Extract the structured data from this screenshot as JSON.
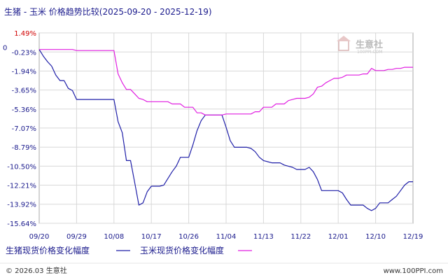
{
  "title": "生猪 - 玉米 价格趋势比较(2025-09-20 - 2025-12-19)",
  "watermark": {
    "brand": "生意社",
    "url": "100PPI.COM"
  },
  "footer": {
    "left": "© 2026.03 生意社",
    "right": "www.100PPI.com"
  },
  "colors": {
    "series_1": "#1f1fa8",
    "series_2": "#e01ee0",
    "axis_text": "#1a1a8c",
    "grid": "#d8d8d8",
    "top_tick": "#d00000"
  },
  "chart_data": {
    "type": "line",
    "title": "生猪 - 玉米 价格趋势比较(2025-09-20 - 2025-12-19)",
    "xlabel": "",
    "ylabel": "",
    "y_unit": "%",
    "ylim": [
      -15.64,
      1.49
    ],
    "y_ticks": [
      "1.49%",
      "-0.23%",
      "-1.94%",
      "-3.65%",
      "-5.36%",
      "-7.07%",
      "-8.79%",
      "-10.50%",
      "-12.21%",
      "-13.92%",
      "-15.64%"
    ],
    "y_tick_values": [
      1.49,
      -0.23,
      -1.94,
      -3.65,
      -5.36,
      -7.07,
      -8.79,
      -10.5,
      -12.21,
      -13.92,
      -15.64
    ],
    "zero_label": "0",
    "x_ticks": [
      "09/20",
      "09/29",
      "10/08",
      "10/17",
      "10/26",
      "11/04",
      "11/13",
      "11/22",
      "12/01",
      "12/10",
      "12/19"
    ],
    "x_range": [
      "09/20",
      "12/19"
    ],
    "grid": true,
    "legend_position": "bottom-left",
    "series": [
      {
        "name": "生猪现货价格变化幅度",
        "color": "#1f1fa8",
        "points": [
          [
            "09/20",
            0.0
          ],
          [
            "09/21",
            -0.6
          ],
          [
            "09/22",
            -1.1
          ],
          [
            "09/23",
            -1.5
          ],
          [
            "09/24",
            -2.3
          ],
          [
            "09/25",
            -2.8
          ],
          [
            "09/26",
            -2.8
          ],
          [
            "09/27",
            -3.5
          ],
          [
            "09/28",
            -3.7
          ],
          [
            "09/29",
            -4.5
          ],
          [
            "09/30",
            -4.5
          ],
          [
            "10/01",
            -4.5
          ],
          [
            "10/02",
            -4.5
          ],
          [
            "10/03",
            -4.5
          ],
          [
            "10/04",
            -4.5
          ],
          [
            "10/05",
            -4.5
          ],
          [
            "10/06",
            -4.5
          ],
          [
            "10/07",
            -4.5
          ],
          [
            "10/08",
            -4.5
          ],
          [
            "10/09",
            -6.5
          ],
          [
            "10/10",
            -7.5
          ],
          [
            "10/11",
            -10.0
          ],
          [
            "10/12",
            -10.0
          ],
          [
            "10/13",
            -12.0
          ],
          [
            "10/14",
            -14.0
          ],
          [
            "10/15",
            -13.8
          ],
          [
            "10/16",
            -12.8
          ],
          [
            "10/17",
            -12.3
          ],
          [
            "10/18",
            -12.3
          ],
          [
            "10/19",
            -12.3
          ],
          [
            "10/20",
            -12.2
          ],
          [
            "10/21",
            -11.6
          ],
          [
            "10/22",
            -11.0
          ],
          [
            "10/23",
            -10.5
          ],
          [
            "10/24",
            -9.7
          ],
          [
            "10/25",
            -9.7
          ],
          [
            "10/26",
            -9.7
          ],
          [
            "10/27",
            -8.6
          ],
          [
            "10/28",
            -7.3
          ],
          [
            "10/29",
            -6.4
          ],
          [
            "10/30",
            -5.9
          ],
          [
            "10/31",
            -5.9
          ],
          [
            "11/01",
            -5.9
          ],
          [
            "11/02",
            -5.9
          ],
          [
            "11/03",
            -5.9
          ],
          [
            "11/04",
            -7.0
          ],
          [
            "11/05",
            -8.2
          ],
          [
            "11/06",
            -8.8
          ],
          [
            "11/07",
            -8.8
          ],
          [
            "11/08",
            -8.8
          ],
          [
            "11/09",
            -8.8
          ],
          [
            "11/10",
            -8.9
          ],
          [
            "11/11",
            -9.2
          ],
          [
            "11/12",
            -9.7
          ],
          [
            "11/13",
            -10.0
          ],
          [
            "11/14",
            -10.1
          ],
          [
            "11/15",
            -10.2
          ],
          [
            "11/16",
            -10.2
          ],
          [
            "11/17",
            -10.2
          ],
          [
            "11/18",
            -10.4
          ],
          [
            "11/19",
            -10.5
          ],
          [
            "11/20",
            -10.6
          ],
          [
            "11/21",
            -10.8
          ],
          [
            "11/22",
            -10.8
          ],
          [
            "11/23",
            -10.8
          ],
          [
            "11/24",
            -10.6
          ],
          [
            "11/25",
            -11.0
          ],
          [
            "11/26",
            -11.7
          ],
          [
            "11/27",
            -12.7
          ],
          [
            "11/28",
            -12.7
          ],
          [
            "11/29",
            -12.7
          ],
          [
            "11/30",
            -12.7
          ],
          [
            "12/01",
            -12.7
          ],
          [
            "12/02",
            -12.9
          ],
          [
            "12/03",
            -13.5
          ],
          [
            "12/04",
            -14.0
          ],
          [
            "12/05",
            -14.0
          ],
          [
            "12/06",
            -14.0
          ],
          [
            "12/07",
            -14.0
          ],
          [
            "12/08",
            -14.3
          ],
          [
            "12/09",
            -14.5
          ],
          [
            "12/10",
            -14.3
          ],
          [
            "12/11",
            -13.8
          ],
          [
            "12/12",
            -13.8
          ],
          [
            "12/13",
            -13.8
          ],
          [
            "12/14",
            -13.5
          ],
          [
            "12/15",
            -13.2
          ],
          [
            "12/16",
            -12.7
          ],
          [
            "12/17",
            -12.2
          ],
          [
            "12/18",
            -11.9
          ],
          [
            "12/19",
            -11.9
          ]
        ]
      },
      {
        "name": "玉米现货价格变化幅度",
        "color": "#e01ee0",
        "points": [
          [
            "09/20",
            0.0
          ],
          [
            "09/21",
            0.0
          ],
          [
            "09/22",
            0.0
          ],
          [
            "09/23",
            0.0
          ],
          [
            "09/24",
            0.0
          ],
          [
            "09/25",
            0.0
          ],
          [
            "09/26",
            0.0
          ],
          [
            "09/27",
            0.0
          ],
          [
            "09/28",
            0.0
          ],
          [
            "09/29",
            -0.1
          ],
          [
            "09/30",
            -0.1
          ],
          [
            "10/01",
            -0.1
          ],
          [
            "10/02",
            -0.1
          ],
          [
            "10/03",
            -0.1
          ],
          [
            "10/04",
            -0.1
          ],
          [
            "10/05",
            -0.1
          ],
          [
            "10/06",
            -0.1
          ],
          [
            "10/07",
            -0.1
          ],
          [
            "10/08",
            -0.1
          ],
          [
            "10/09",
            -2.2
          ],
          [
            "10/10",
            -3.0
          ],
          [
            "10/11",
            -3.6
          ],
          [
            "10/12",
            -3.6
          ],
          [
            "10/13",
            -4.0
          ],
          [
            "10/14",
            -4.4
          ],
          [
            "10/15",
            -4.5
          ],
          [
            "10/16",
            -4.7
          ],
          [
            "10/17",
            -4.7
          ],
          [
            "10/18",
            -4.7
          ],
          [
            "10/19",
            -4.7
          ],
          [
            "10/20",
            -4.7
          ],
          [
            "10/21",
            -4.7
          ],
          [
            "10/22",
            -4.9
          ],
          [
            "10/23",
            -4.9
          ],
          [
            "10/24",
            -4.9
          ],
          [
            "10/25",
            -5.2
          ],
          [
            "10/26",
            -5.2
          ],
          [
            "10/27",
            -5.2
          ],
          [
            "10/28",
            -5.7
          ],
          [
            "10/29",
            -5.7
          ],
          [
            "10/30",
            -5.9
          ],
          [
            "10/31",
            -5.9
          ],
          [
            "11/01",
            -5.9
          ],
          [
            "11/02",
            -5.9
          ],
          [
            "11/03",
            -5.9
          ],
          [
            "11/04",
            -5.8
          ],
          [
            "11/05",
            -5.8
          ],
          [
            "11/06",
            -5.8
          ],
          [
            "11/07",
            -5.8
          ],
          [
            "11/08",
            -5.8
          ],
          [
            "11/09",
            -5.8
          ],
          [
            "11/10",
            -5.8
          ],
          [
            "11/11",
            -5.6
          ],
          [
            "11/12",
            -5.6
          ],
          [
            "11/13",
            -5.2
          ],
          [
            "11/14",
            -5.2
          ],
          [
            "11/15",
            -5.2
          ],
          [
            "11/16",
            -4.9
          ],
          [
            "11/17",
            -4.9
          ],
          [
            "11/18",
            -4.9
          ],
          [
            "11/19",
            -4.6
          ],
          [
            "11/20",
            -4.5
          ],
          [
            "11/21",
            -4.4
          ],
          [
            "11/22",
            -4.4
          ],
          [
            "11/23",
            -4.4
          ],
          [
            "11/24",
            -4.3
          ],
          [
            "11/25",
            -4.0
          ],
          [
            "11/26",
            -3.4
          ],
          [
            "11/27",
            -3.3
          ],
          [
            "11/28",
            -3.0
          ],
          [
            "11/29",
            -2.8
          ],
          [
            "11/30",
            -2.6
          ],
          [
            "12/01",
            -2.6
          ],
          [
            "12/02",
            -2.5
          ],
          [
            "12/03",
            -2.3
          ],
          [
            "12/04",
            -2.3
          ],
          [
            "12/05",
            -2.3
          ],
          [
            "12/06",
            -2.3
          ],
          [
            "12/07",
            -2.2
          ],
          [
            "12/08",
            -2.2
          ],
          [
            "12/09",
            -1.7
          ],
          [
            "12/10",
            -1.9
          ],
          [
            "12/11",
            -1.9
          ],
          [
            "12/12",
            -1.9
          ],
          [
            "12/13",
            -1.8
          ],
          [
            "12/14",
            -1.8
          ],
          [
            "12/15",
            -1.7
          ],
          [
            "12/16",
            -1.7
          ],
          [
            "12/17",
            -1.6
          ],
          [
            "12/18",
            -1.6
          ],
          [
            "12/19",
            -1.6
          ]
        ]
      }
    ]
  }
}
